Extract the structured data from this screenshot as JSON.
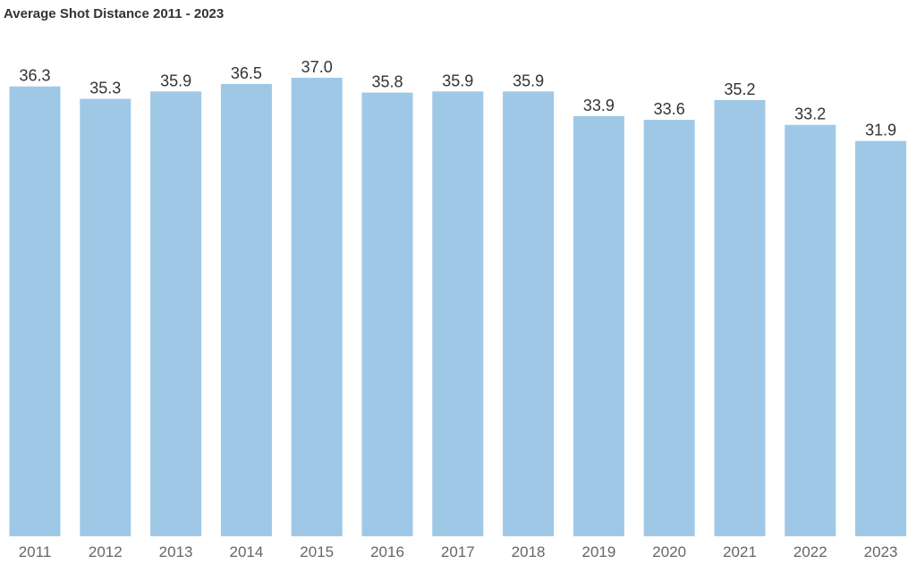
{
  "chart_data": {
    "type": "bar",
    "title": "Average Shot Distance 2011 - 2023",
    "categories": [
      "2011",
      "2012",
      "2013",
      "2014",
      "2015",
      "2016",
      "2017",
      "2018",
      "2019",
      "2020",
      "2021",
      "2022",
      "2023"
    ],
    "values": [
      36.3,
      35.3,
      35.9,
      36.5,
      37.0,
      35.8,
      35.9,
      35.9,
      33.9,
      33.6,
      35.2,
      33.2,
      31.9
    ],
    "data_labels": [
      "36.3",
      "35.3",
      "35.9",
      "36.5",
      "37.0",
      "35.8",
      "35.9",
      "35.9",
      "33.9",
      "33.6",
      "35.2",
      "33.2",
      "31.9"
    ],
    "xlabel": "",
    "ylabel": "",
    "ylim": [
      0,
      37.0
    ],
    "grid": false,
    "legend": "none",
    "bar_color": "#9fc8e7"
  }
}
